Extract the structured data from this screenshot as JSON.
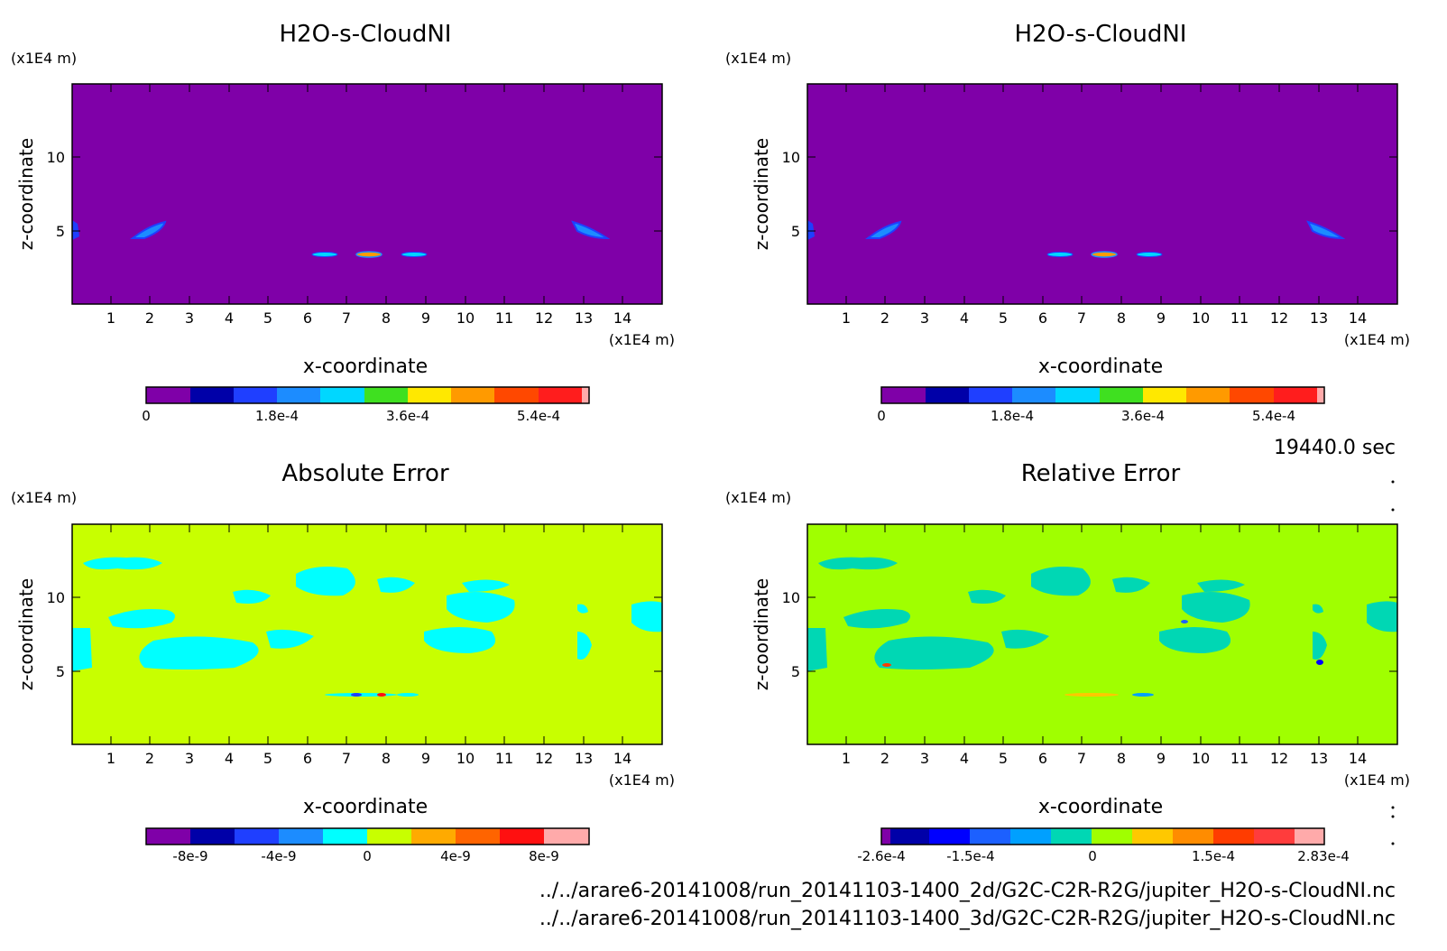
{
  "figure": {
    "time_label": "19440.0 sec",
    "file_paths": [
      "../../arare6-20141008/run_20141103-1400_2d/G2C-C2R-R2G/jupiter_H2O-s-CloudNI.nc",
      "../../arare6-20141008/run_20141103-1400_3d/G2C-C2R-R2G/jupiter_H2O-s-CloudNI.nc"
    ]
  },
  "chart_data": [
    {
      "type": "heatmap",
      "title": "H2O-s-CloudNI",
      "xlabel": "x-coordinate",
      "ylabel": "z-coordinate",
      "x_unit": "(x1E4 m)",
      "y_unit": "(x1E4 m)",
      "xlim": [
        0,
        15
      ],
      "ylim": [
        0,
        15
      ],
      "x_ticks": [
        1,
        2,
        3,
        4,
        5,
        6,
        7,
        8,
        9,
        10,
        11,
        12,
        13,
        14
      ],
      "y_ticks": [
        5,
        10
      ],
      "background_level": 0,
      "colorbar": {
        "colors": [
          "#7f00a8",
          "#0000a8",
          "#1f3fff",
          "#1c8cff",
          "#00d7ff",
          "#3fe020",
          "#ffe800",
          "#ff9a00",
          "#ff4800",
          "#ff1d1d",
          "#ffaaaa"
        ],
        "tick_labels": [
          "0",
          "1.8e-4",
          "3.6e-4",
          "5.4e-4"
        ],
        "tick_values": [
          0,
          0.00018,
          0.00036,
          0.00054
        ],
        "range": [
          0,
          0.00066
        ]
      },
      "features": [
        {
          "x": 1.95,
          "z": 5.0,
          "value": 0.00015
        },
        {
          "x": 0.05,
          "z": 5.2,
          "value": 0.0001
        },
        {
          "x": 13.2,
          "z": 5.0,
          "value": 0.00015
        },
        {
          "x": 6.4,
          "z": 3.3,
          "value": 0.00022
        },
        {
          "x": 7.6,
          "z": 3.3,
          "value": 0.00045
        },
        {
          "x": 8.8,
          "z": 3.3,
          "value": 0.00022
        }
      ]
    },
    {
      "type": "heatmap",
      "title": "H2O-s-CloudNI",
      "xlabel": "x-coordinate",
      "ylabel": "z-coordinate",
      "x_unit": "(x1E4 m)",
      "y_unit": "(x1E4 m)",
      "xlim": [
        0,
        15
      ],
      "ylim": [
        0,
        15
      ],
      "x_ticks": [
        1,
        2,
        3,
        4,
        5,
        6,
        7,
        8,
        9,
        10,
        11,
        12,
        13,
        14
      ],
      "y_ticks": [
        5,
        10
      ],
      "background_level": 0,
      "colorbar": {
        "colors": [
          "#7f00a8",
          "#0000a8",
          "#1f3fff",
          "#1c8cff",
          "#00d7ff",
          "#3fe020",
          "#ffe800",
          "#ff9a00",
          "#ff4800",
          "#ff1d1d",
          "#ffaaaa"
        ],
        "tick_labels": [
          "0",
          "1.8e-4",
          "3.6e-4",
          "5.4e-4"
        ],
        "tick_values": [
          0,
          0.00018,
          0.00036,
          0.00054
        ],
        "range": [
          0,
          0.00066
        ]
      },
      "features": [
        {
          "x": 1.95,
          "z": 5.0,
          "value": 0.00015
        },
        {
          "x": 0.05,
          "z": 5.2,
          "value": 0.0001
        },
        {
          "x": 13.2,
          "z": 5.0,
          "value": 0.00015
        },
        {
          "x": 6.4,
          "z": 3.3,
          "value": 0.00022
        },
        {
          "x": 7.6,
          "z": 3.3,
          "value": 0.00045
        },
        {
          "x": 8.8,
          "z": 3.3,
          "value": 0.00022
        }
      ]
    },
    {
      "type": "heatmap",
      "title": "Absolute Error",
      "xlabel": "x-coordinate",
      "ylabel": "z-coordinate",
      "x_unit": "(x1E4 m)",
      "y_unit": "(x1E4 m)",
      "xlim": [
        0,
        15
      ],
      "ylim": [
        0,
        15
      ],
      "x_ticks": [
        1,
        2,
        3,
        4,
        5,
        6,
        7,
        8,
        9,
        10,
        11,
        12,
        13,
        14
      ],
      "y_ticks": [
        5,
        10
      ],
      "background_level": 0,
      "colorbar": {
        "colors": [
          "#7f00a8",
          "#0000a8",
          "#1f3fff",
          "#1c8cff",
          "#00ffff",
          "#c8ff00",
          "#ffaa00",
          "#ff6400",
          "#ff1010",
          "#ffaaaa"
        ],
        "tick_labels": [
          "-8e-9",
          "-4e-9",
          "0",
          "4e-9",
          "8e-9"
        ],
        "tick_values": [
          -8e-09,
          -4e-09,
          0,
          4e-09,
          8e-09
        ],
        "range": [
          -1e-08,
          1.2e-08
        ]
      },
      "features": [
        {
          "x": 1.8,
          "z": 12.0,
          "value": -1e-10
        },
        {
          "x": 2.0,
          "z": 7.5,
          "value": -1e-10
        },
        {
          "x": 4.0,
          "z": 6.0,
          "value": -1e-10
        },
        {
          "x": 7.0,
          "z": 11.0,
          "value": -1e-10
        },
        {
          "x": 10.0,
          "z": 7.5,
          "value": -1e-10
        },
        {
          "x": 11.0,
          "z": 10.5,
          "value": -1e-10
        },
        {
          "x": 14.5,
          "z": 8.5,
          "value": -1e-10
        },
        {
          "x": 7.2,
          "z": 3.3,
          "value": -6e-09
        },
        {
          "x": 7.8,
          "z": 3.3,
          "value": 7e-09
        }
      ]
    },
    {
      "type": "heatmap",
      "title": "Relative Error",
      "xlabel": "x-coordinate",
      "ylabel": "z-coordinate",
      "x_unit": "(x1E4 m)",
      "y_unit": "(x1E4 m)",
      "xlim": [
        0,
        15
      ],
      "ylim": [
        0,
        15
      ],
      "x_ticks": [
        1,
        2,
        3,
        4,
        5,
        6,
        7,
        8,
        9,
        10,
        11,
        12,
        13,
        14
      ],
      "y_ticks": [
        5,
        10
      ],
      "background_level": 0,
      "colorbar": {
        "colors": [
          "#7f00a8",
          "#0000a8",
          "#0000ff",
          "#1c60ff",
          "#00a0ff",
          "#00d7b4",
          "#a0ff00",
          "#ffc800",
          "#ff8c00",
          "#ff3c00",
          "#ff3c3c",
          "#ffaaaa"
        ],
        "tick_labels": [
          "-2.6e-4",
          "-1.5e-4",
          "0",
          "1.5e-4",
          "2.83e-4"
        ],
        "tick_values": [
          -0.00026,
          -0.00015,
          0,
          0.00015,
          0.000283
        ],
        "range": [
          -0.00026,
          0.000283
        ]
      },
      "features": [
        {
          "x": 1.8,
          "z": 12.0,
          "value": -5e-06
        },
        {
          "x": 2.0,
          "z": 7.5,
          "value": -5e-06
        },
        {
          "x": 4.0,
          "z": 6.0,
          "value": -5e-06
        },
        {
          "x": 7.0,
          "z": 11.0,
          "value": -5e-06
        },
        {
          "x": 10.0,
          "z": 7.5,
          "value": -5e-06
        },
        {
          "x": 11.0,
          "z": 10.5,
          "value": -5e-06
        },
        {
          "x": 14.5,
          "z": 8.5,
          "value": -5e-06
        },
        {
          "x": 2.1,
          "z": 5.5,
          "value": 0.00025
        },
        {
          "x": 13.0,
          "z": 5.3,
          "value": -0.0002
        }
      ]
    }
  ]
}
